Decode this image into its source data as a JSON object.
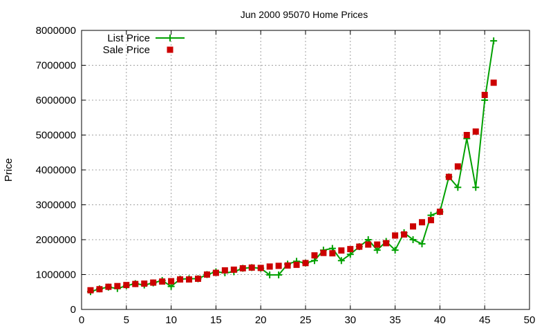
{
  "chart_data": {
    "type": "line",
    "title": "Jun 2000 95070 Home Prices",
    "xlabel": "",
    "ylabel": "Price",
    "xlim": [
      0,
      50
    ],
    "ylim": [
      0,
      8000000
    ],
    "xticks": [
      0,
      5,
      10,
      15,
      20,
      25,
      30,
      35,
      40,
      45,
      50
    ],
    "yticks": [
      0,
      1000000,
      2000000,
      3000000,
      4000000,
      5000000,
      6000000,
      7000000,
      8000000
    ],
    "grid": true,
    "legend_position": "top-left",
    "x": [
      1,
      2,
      3,
      4,
      5,
      6,
      7,
      8,
      9,
      10,
      11,
      12,
      13,
      14,
      15,
      16,
      17,
      18,
      19,
      20,
      21,
      22,
      23,
      24,
      25,
      26,
      27,
      28,
      29,
      30,
      31,
      32,
      33,
      34,
      35,
      36,
      37,
      38,
      39,
      40,
      41,
      42,
      43,
      44,
      45,
      46
    ],
    "series": [
      {
        "name": "List Price",
        "style": "linespoints",
        "color": "#00a000",
        "values": [
          510000,
          590000,
          640000,
          600000,
          680000,
          740000,
          700000,
          760000,
          830000,
          660000,
          870000,
          880000,
          880000,
          1000000,
          1080000,
          1050000,
          1080000,
          1180000,
          1200000,
          1180000,
          990000,
          990000,
          1300000,
          1380000,
          1330000,
          1400000,
          1700000,
          1750000,
          1400000,
          1580000,
          1800000,
          2000000,
          1700000,
          1950000,
          1700000,
          2200000,
          2000000,
          1880000,
          2700000,
          2800000,
          3800000,
          3500000,
          4900000,
          3500000,
          6000000,
          7700000
        ]
      },
      {
        "name": "Sale Price",
        "style": "points",
        "color": "#cc0000",
        "values": [
          550000,
          580000,
          650000,
          670000,
          700000,
          730000,
          740000,
          770000,
          800000,
          810000,
          860000,
          860000,
          880000,
          1000000,
          1050000,
          1120000,
          1140000,
          1180000,
          1200000,
          1190000,
          1230000,
          1250000,
          1260000,
          1280000,
          1330000,
          1550000,
          1620000,
          1610000,
          1690000,
          1730000,
          1800000,
          1860000,
          1860000,
          1900000,
          2120000,
          2150000,
          2380000,
          2500000,
          2560000,
          2800000,
          3800000,
          4100000,
          5000000,
          5100000,
          6150000,
          6500000
        ]
      }
    ]
  }
}
